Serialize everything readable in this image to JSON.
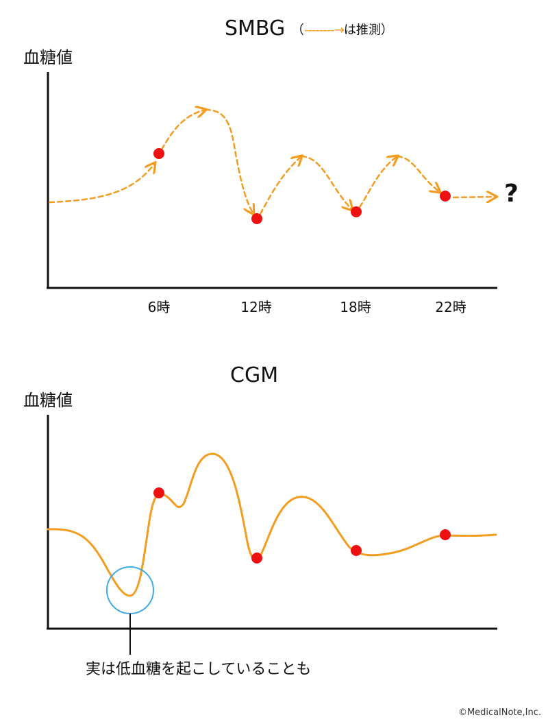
{
  "smbg": {
    "title": "SMBG",
    "subtitle_open": "（",
    "subtitle_arrow": "--------→",
    "subtitle_text": "は推測）",
    "ylabel": "血糖値",
    "xticks": [
      "6時",
      "12時",
      "18時",
      "22時"
    ],
    "unknown_marker": "?"
  },
  "cgm": {
    "title": "CGM",
    "ylabel": "血糖値",
    "annotation": "実は低血糖を起こしていることも"
  },
  "credit": "©MedicalNote,Inc.",
  "colors": {
    "curve": "#f39c1f",
    "point": "#ee1111",
    "highlight_circle": "#3fa9e6",
    "axis": "#111111"
  }
}
